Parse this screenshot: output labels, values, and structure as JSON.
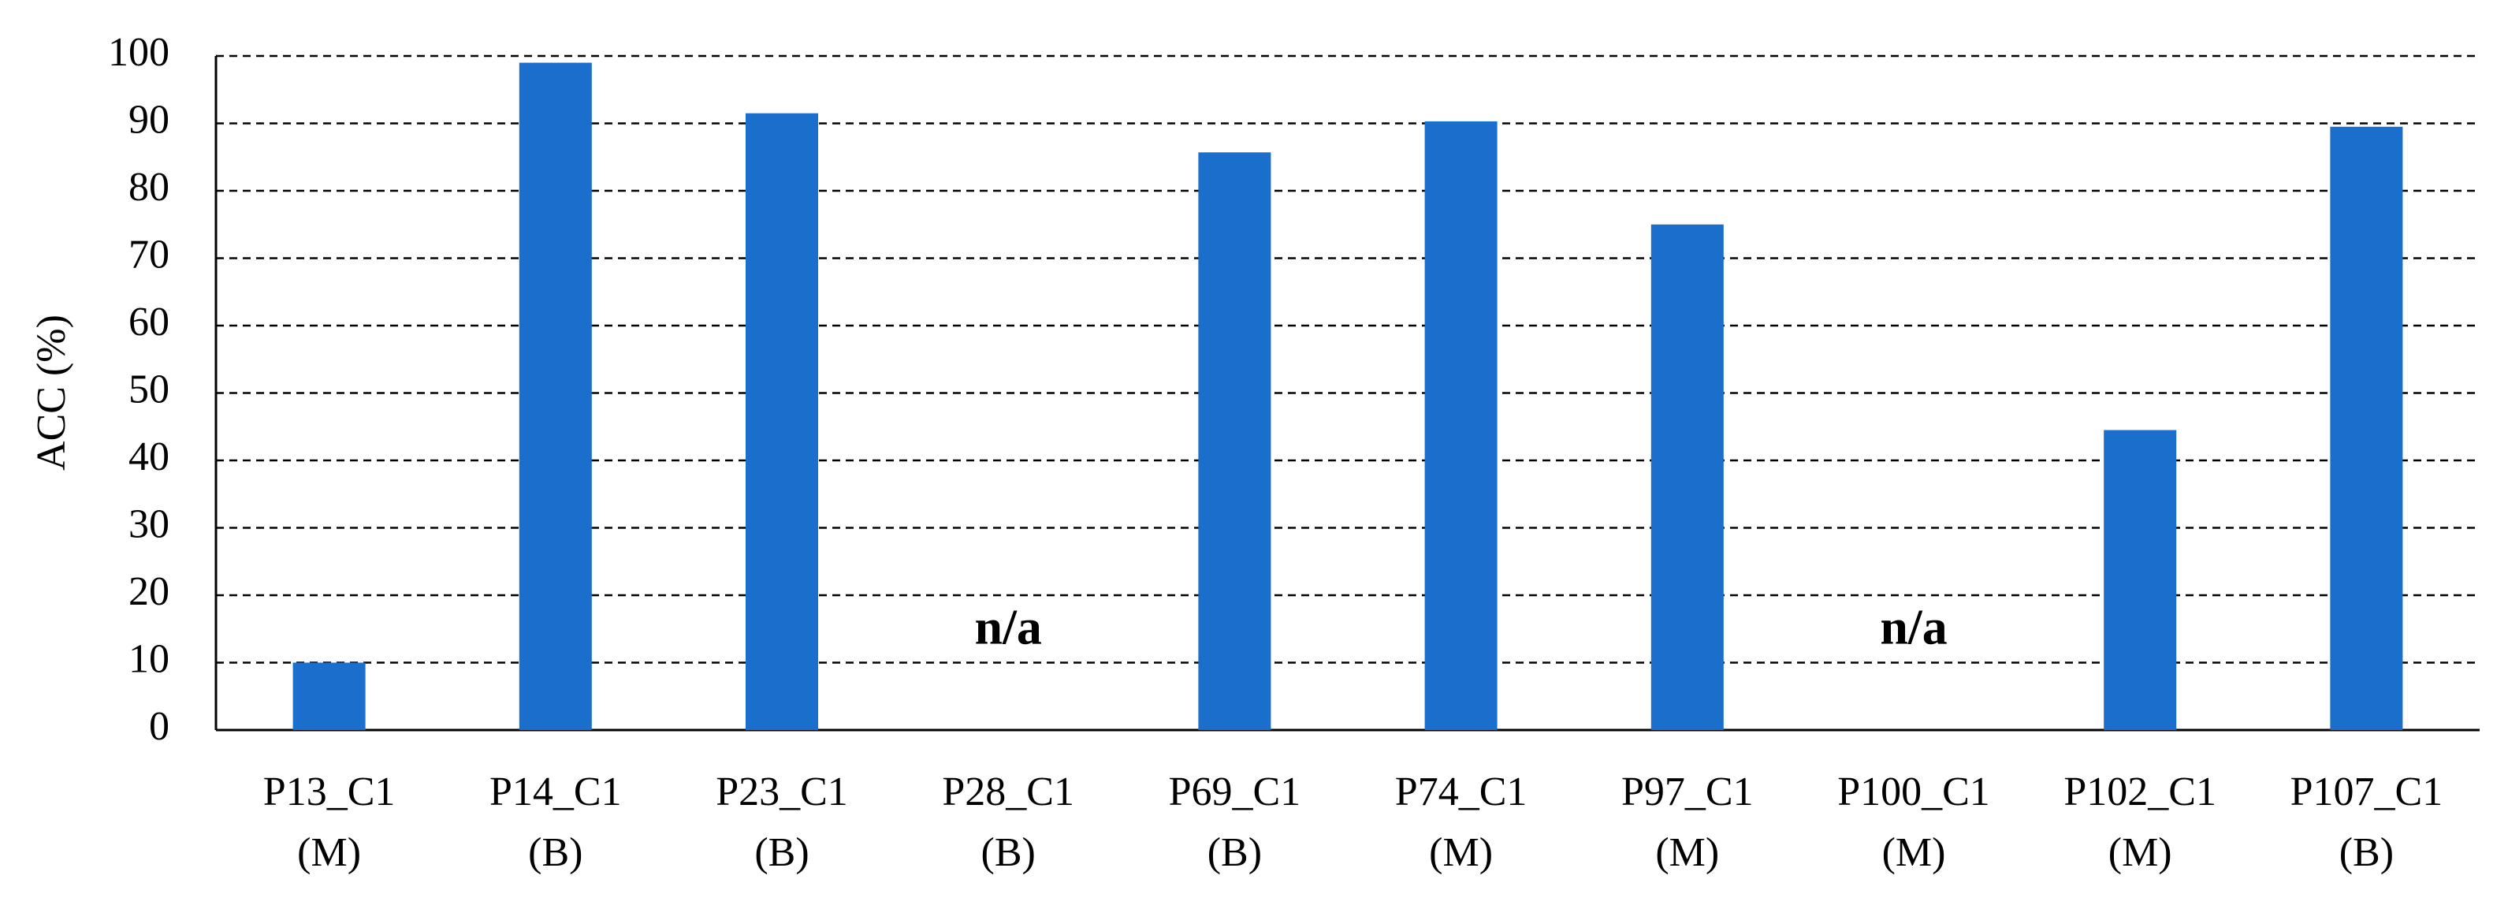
{
  "chart_data": {
    "type": "bar",
    "y_label": "ACC (%)",
    "categories": [
      [
        "P13_C1",
        "(M)"
      ],
      [
        "P14_C1",
        "(B)"
      ],
      [
        "P23_C1",
        "(B)"
      ],
      [
        "P28_C1",
        "(B)"
      ],
      [
        "P69_C1",
        "(B)"
      ],
      [
        "P74_C1",
        "(M)"
      ],
      [
        "P97_C1",
        "(M)"
      ],
      [
        "P100_C1",
        "(M)"
      ],
      [
        "P102_C1",
        "(M)"
      ],
      [
        "P107_C1",
        "(B)"
      ]
    ],
    "values": [
      10,
      99,
      91.5,
      null,
      85.7,
      90.3,
      75,
      null,
      44.5,
      89.5
    ],
    "value_labels": [
      null,
      null,
      null,
      "n/a",
      null,
      null,
      null,
      "n/a",
      null,
      null
    ],
    "color": "#1a6fcc",
    "ylim": [
      0,
      100
    ],
    "yticks": [
      0,
      10,
      20,
      30,
      40,
      50,
      60,
      70,
      80,
      90,
      100
    ],
    "grid": true
  }
}
